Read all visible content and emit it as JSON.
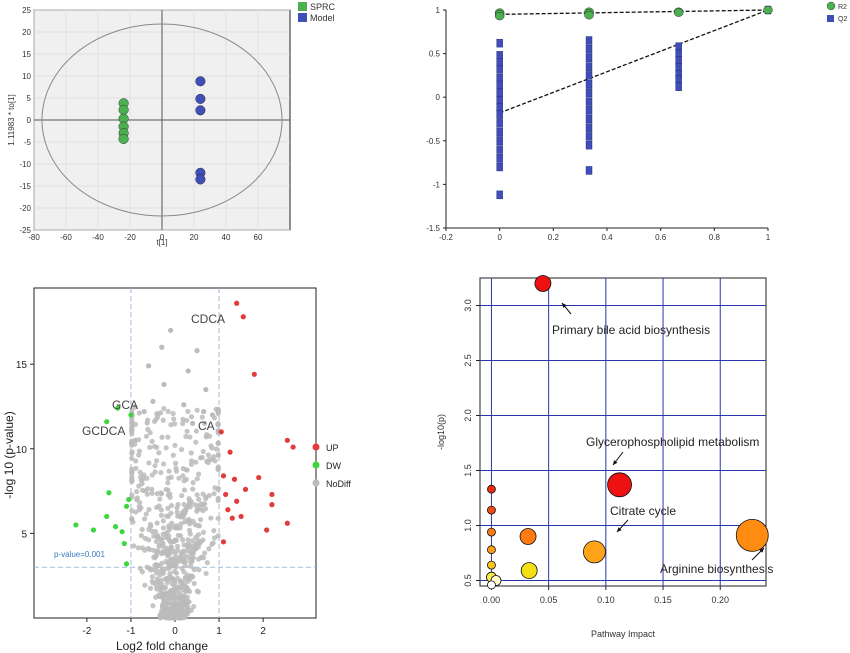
{
  "chart_data": [
    {
      "type": "scatter",
      "xlabel": "t[1]",
      "ylabel": "1.11983 * to[1]",
      "xlim": [
        -80,
        80
      ],
      "ylim": [
        -25,
        25
      ],
      "xticks": [
        "-80",
        "-60",
        "-40",
        "-20",
        "0",
        "20",
        "40",
        "60"
      ],
      "yticks": [
        "-25",
        "-20",
        "-15",
        "-10",
        "-5",
        "0",
        "5",
        "10",
        "15",
        "20",
        "25"
      ],
      "grid": true,
      "legend_position": "top-right",
      "series": [
        {
          "name": "SPRC",
          "color": "#4caf50",
          "points": [
            [
              -24,
              3.8
            ],
            [
              -24,
              2.3
            ],
            [
              -24,
              0.3
            ],
            [
              -24,
              -1.5
            ],
            [
              -24,
              -3
            ],
            [
              -24,
              -4.3
            ]
          ]
        },
        {
          "name": "Model",
          "color": "#3f4fb5",
          "points": [
            [
              24,
              8.8
            ],
            [
              24,
              4.8
            ],
            [
              24,
              2.2
            ],
            [
              24,
              -12
            ],
            [
              24,
              -13.5
            ]
          ]
        }
      ]
    },
    {
      "type": "scatter",
      "xlim": [
        -0.2,
        1
      ],
      "ylim": [
        -1.5,
        1
      ],
      "xticks": [
        "-0.2",
        "0",
        "0.2",
        "0.4",
        "0.6",
        "0.8",
        "1"
      ],
      "yticks": [
        "-1.5",
        "-1",
        "-0.5",
        "0",
        "0.5",
        "1"
      ],
      "legend_position": "top-right",
      "series": [
        {
          "name": "R2",
          "color": "#4caf50",
          "points": [
            [
              0,
              0.97
            ],
            [
              0,
              0.95
            ],
            [
              0,
              0.93
            ],
            [
              0.333,
              0.98
            ],
            [
              0.333,
              0.96
            ],
            [
              0.333,
              0.94
            ],
            [
              0.667,
              0.98
            ],
            [
              0.667,
              0.97
            ],
            [
              1,
              1
            ]
          ]
        },
        {
          "name": "Q2",
          "color": "#3f4fb5",
          "points": [
            [
              0,
              0.62
            ],
            [
              0,
              0.48
            ],
            [
              0,
              0.4
            ],
            [
              0,
              0.32
            ],
            [
              0,
              0.22
            ],
            [
              0,
              0.14
            ],
            [
              0,
              0.05
            ],
            [
              0,
              -0.04
            ],
            [
              0,
              -0.12
            ],
            [
              0,
              -0.2
            ],
            [
              0,
              -0.3
            ],
            [
              0,
              -0.4
            ],
            [
              0,
              -0.5
            ],
            [
              0,
              -0.6
            ],
            [
              0,
              -0.7
            ],
            [
              0,
              -0.8
            ],
            [
              0,
              -1.12
            ],
            [
              0.333,
              0.65
            ],
            [
              0.333,
              0.55
            ],
            [
              0.333,
              0.45
            ],
            [
              0.333,
              0.35
            ],
            [
              0.333,
              0.25
            ],
            [
              0.333,
              0.15
            ],
            [
              0.333,
              0.05
            ],
            [
              0.333,
              -0.05
            ],
            [
              0.333,
              -0.15
            ],
            [
              0.333,
              -0.25
            ],
            [
              0.333,
              -0.35
            ],
            [
              0.333,
              -0.45
            ],
            [
              0.333,
              -0.55
            ],
            [
              0.333,
              -0.84
            ],
            [
              0.667,
              0.58
            ],
            [
              0.667,
              0.5
            ],
            [
              0.667,
              0.42
            ],
            [
              0.667,
              0.34
            ],
            [
              0.667,
              0.26
            ],
            [
              0.667,
              0.2
            ],
            [
              0.667,
              0.12
            ],
            [
              1,
              1
            ]
          ]
        }
      ],
      "regression_lines": [
        {
          "series": "R2",
          "from": [
            0,
            0.95
          ],
          "to": [
            1,
            1
          ]
        },
        {
          "series": "Q2",
          "from": [
            0,
            -0.18
          ],
          "to": [
            1,
            1
          ]
        }
      ]
    },
    {
      "type": "scatter",
      "xlabel": "Log2 fold change",
      "ylabel": "-log 10 (p-value)",
      "xlim": [
        -3.2,
        3.2
      ],
      "ylim": [
        0,
        19.5
      ],
      "xticks": [
        "-2",
        "-1",
        "0",
        "1",
        "2"
      ],
      "yticks": [
        "5",
        "10",
        "15"
      ],
      "threshold_lines": {
        "x": [
          -1,
          1
        ],
        "y": 3
      },
      "threshold_label": "p-value=0.001",
      "legend_position": "right",
      "series": [
        {
          "name": "UP",
          "color": "#e23b3b",
          "points": [
            [
              1.4,
              18.6
            ],
            [
              1.55,
              17.8
            ],
            [
              1.05,
              11
            ],
            [
              1.8,
              14.4
            ],
            [
              2.2,
              7.3
            ],
            [
              2.55,
              10.5
            ],
            [
              2.68,
              10.1
            ],
            [
              1.25,
              9.8
            ],
            [
              1.1,
              8.4
            ],
            [
              1.35,
              8.2
            ],
            [
              1.6,
              7.6
            ],
            [
              1.9,
              8.3
            ],
            [
              1.15,
              7.3
            ],
            [
              1.4,
              6.9
            ],
            [
              1.2,
              6.4
            ],
            [
              2.2,
              6.7
            ],
            [
              1.5,
              6.0
            ],
            [
              1.3,
              5.9
            ],
            [
              2.08,
              5.2
            ],
            [
              2.55,
              5.6
            ],
            [
              1.1,
              4.5
            ]
          ]
        },
        {
          "name": "DW",
          "color": "#3ed63e",
          "points": [
            [
              -1.3,
              12.4
            ],
            [
              -1.0,
              12.0
            ],
            [
              -1.55,
              11.6
            ],
            [
              -1.5,
              7.4
            ],
            [
              -1.05,
              7.0
            ],
            [
              -1.55,
              6.0
            ],
            [
              -1.1,
              6.6
            ],
            [
              -1.35,
              5.4
            ],
            [
              -1.85,
              5.2
            ],
            [
              -1.2,
              5.1
            ],
            [
              -2.25,
              5.5
            ],
            [
              -1.15,
              4.4
            ],
            [
              -1.1,
              3.2
            ]
          ]
        },
        {
          "name": "NoDiff",
          "color": "#bbbbbb",
          "points": [
            [
              -0.1,
              17.0
            ],
            [
              0.5,
              15.8
            ],
            [
              -0.3,
              16.0
            ],
            [
              -0.6,
              14.9
            ],
            [
              0.3,
              14.6
            ],
            [
              -0.25,
              13.8
            ],
            [
              0.7,
              13.5
            ],
            [
              -0.5,
              12.8
            ],
            [
              0.2,
              12.6
            ],
            [
              0.65,
              12.2
            ],
            [
              -0.7,
              12.2
            ],
            [
              0.85,
              12.0
            ],
            [
              -0.9,
              10.5
            ],
            [
              0.4,
              11.5
            ]
          ]
        }
      ],
      "annotations": [
        "CDCA",
        "GCA",
        "GCDCA",
        "CA"
      ]
    },
    {
      "type": "scatter",
      "xlabel": "Pathway Impact",
      "ylabel": "-log10(p)",
      "xlim": [
        -0.01,
        0.24
      ],
      "ylim": [
        0.45,
        3.25
      ],
      "xticks": [
        "0.00",
        "0.05",
        "0.10",
        "0.15",
        "0.20"
      ],
      "yticks": [
        "0.5",
        "1.0",
        "1.5",
        "2.0",
        "2.5",
        "3.0"
      ],
      "grid": true,
      "points": [
        {
          "x": 0.045,
          "y": 3.2,
          "size": 8,
          "color": "#ee1111"
        },
        {
          "x": 0.112,
          "y": 1.37,
          "size": 12,
          "color": "#ee1111"
        },
        {
          "x": 0.228,
          "y": 0.91,
          "size": 16,
          "color": "#ff8c10"
        },
        {
          "x": 0.09,
          "y": 0.76,
          "size": 11,
          "color": "#ffa418"
        },
        {
          "x": 0.032,
          "y": 0.9,
          "size": 8,
          "color": "#ff7a10"
        },
        {
          "x": 0.033,
          "y": 0.59,
          "size": 8,
          "color": "#f2e015"
        },
        {
          "x": 0.0,
          "y": 1.33,
          "size": 4,
          "color": "#e82a12"
        },
        {
          "x": 0.0,
          "y": 1.14,
          "size": 4,
          "color": "#f04a12"
        },
        {
          "x": 0.0,
          "y": 0.94,
          "size": 4,
          "color": "#ff7a10"
        },
        {
          "x": 0.0,
          "y": 0.78,
          "size": 4,
          "color": "#ff9d18"
        },
        {
          "x": 0.0,
          "y": 0.64,
          "size": 4,
          "color": "#fbc41c"
        },
        {
          "x": 0.0,
          "y": 0.53,
          "size": 5,
          "color": "#fbe84a"
        },
        {
          "x": 0.004,
          "y": 0.5,
          "size": 5,
          "color": "#ffffd0"
        },
        {
          "x": 0.0,
          "y": 0.46,
          "size": 4,
          "color": "#ffffff"
        }
      ],
      "annotations": [
        "Primary bile acid biosynthesis",
        "Glycerophospholipid  metabolism",
        "Citrate cycle",
        "Arginine biosynthesis"
      ]
    }
  ]
}
